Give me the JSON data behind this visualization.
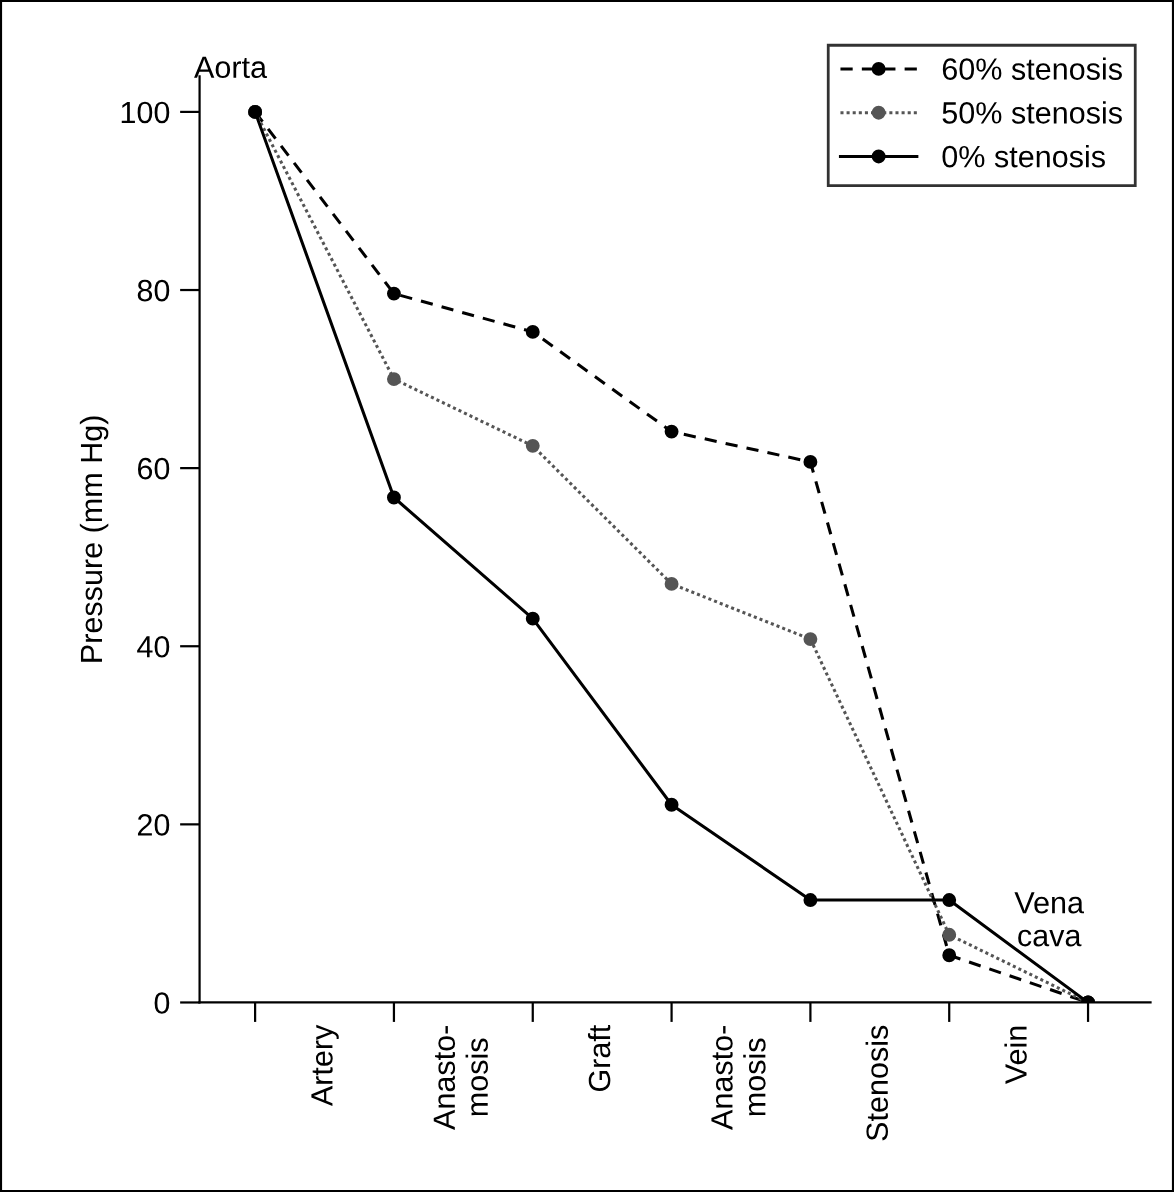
{
  "chart_data": {
    "type": "line",
    "ylabel": "Pressure (mm Hg)",
    "categories": [
      null,
      "Artery",
      null,
      "Anasto-\nmosis",
      null,
      "Graft",
      null,
      "Anasto-\nmosis",
      null,
      "Stenosis",
      null,
      "Vein",
      null
    ],
    "ylim": [
      0,
      104
    ],
    "yticks": [
      0,
      20,
      40,
      60,
      80,
      100
    ],
    "series": [
      {
        "name": "60% stenosis",
        "color": "#000000",
        "line_style": "dashed",
        "values": [
          100,
          null,
          79.6,
          null,
          75.3,
          null,
          64.1,
          null,
          60.7,
          null,
          5.3,
          null,
          0
        ]
      },
      {
        "name": "50% stenosis",
        "color": "#555555",
        "line_style": "dotted",
        "values": [
          100,
          null,
          70.0,
          null,
          62.5,
          null,
          47.0,
          null,
          40.8,
          null,
          7.6,
          null,
          0
        ]
      },
      {
        "name": "0% stenosis",
        "color": "#000000",
        "line_style": "solid",
        "values": [
          100,
          null,
          56.7,
          null,
          43.1,
          null,
          22.2,
          null,
          11.5,
          null,
          11.5,
          null,
          0
        ]
      }
    ],
    "marker": "circle",
    "legend": "top right",
    "grid": false,
    "annotations": [
      "Aorta",
      "Vena\ncava"
    ]
  }
}
